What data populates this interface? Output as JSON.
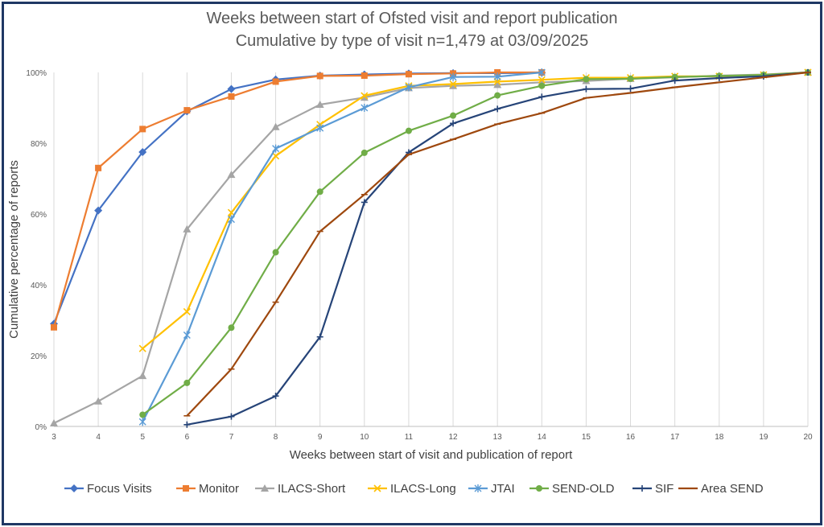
{
  "chart_data": {
    "type": "line",
    "title": "Weeks between start of Ofsted visit and report publication",
    "subtitle": "Cumulative by type of visit n=1,479 at 03/09/2025",
    "xlabel": "Weeks between start of visit and publication of report",
    "ylabel": "Cumulative percentage of reports",
    "xlim": [
      3,
      20
    ],
    "ylim": [
      0,
      100
    ],
    "x_ticks": [
      3,
      4,
      5,
      6,
      7,
      8,
      9,
      10,
      11,
      12,
      13,
      14,
      15,
      16,
      17,
      18,
      19,
      20
    ],
    "y_ticks": [
      "0%",
      "20%",
      "40%",
      "60%",
      "80%",
      "100%"
    ],
    "grid": "vertical",
    "legend": "bottom",
    "series": [
      {
        "name": "Focus Visits",
        "color": "#4472c4",
        "marker": "diamond",
        "points": [
          [
            3,
            29
          ],
          [
            4,
            61
          ],
          [
            5,
            77.5
          ],
          [
            6,
            89
          ],
          [
            7,
            95.3
          ],
          [
            8,
            98
          ],
          [
            9,
            99.1
          ],
          [
            10,
            99.4
          ],
          [
            11,
            99.7
          ],
          [
            12,
            99.8
          ],
          [
            13,
            99.8
          ],
          [
            14,
            99.9
          ]
        ]
      },
      {
        "name": "Monitor",
        "color": "#ed7d31",
        "marker": "square",
        "points": [
          [
            3,
            28
          ],
          [
            4,
            73
          ],
          [
            5,
            84
          ],
          [
            6,
            89.3
          ],
          [
            7,
            93.2
          ],
          [
            8,
            97.4
          ],
          [
            9,
            99
          ],
          [
            10,
            99.1
          ],
          [
            11,
            99.5
          ],
          [
            12,
            99.7
          ],
          [
            13,
            100
          ],
          [
            14,
            100
          ]
        ]
      },
      {
        "name": "ILACS-Short",
        "color": "#a5a5a5",
        "marker": "triangle",
        "points": [
          [
            3,
            0.9
          ],
          [
            4,
            7.1
          ],
          [
            5,
            14.3
          ],
          [
            6,
            55.7
          ],
          [
            7,
            71.1
          ],
          [
            8,
            84.6
          ],
          [
            9,
            90.9
          ],
          [
            10,
            92.9
          ],
          [
            11,
            95.6
          ],
          [
            12,
            96.2
          ],
          [
            13,
            96.5
          ],
          [
            14,
            97.2
          ],
          [
            15,
            97.6
          ],
          [
            16,
            98.2
          ],
          [
            17,
            98.6
          ],
          [
            18,
            99.1
          ],
          [
            19,
            99.4
          ],
          [
            20,
            100
          ]
        ]
      },
      {
        "name": "ILACS-Long",
        "color": "#ffc000",
        "marker": "x",
        "points": [
          [
            5,
            22
          ],
          [
            6,
            32.4
          ],
          [
            7,
            60.4
          ],
          [
            8,
            76.4
          ],
          [
            9,
            85.3
          ],
          [
            10,
            93.4
          ],
          [
            11,
            96.2
          ],
          [
            12,
            96.7
          ],
          [
            13,
            97.4
          ],
          [
            14,
            97.9
          ],
          [
            15,
            98.5
          ],
          [
            16,
            98.5
          ],
          [
            17,
            98.9
          ],
          [
            18,
            98.9
          ],
          [
            19,
            99.3
          ],
          [
            20,
            100
          ]
        ]
      },
      {
        "name": "JTAI",
        "color": "#5b9bd5",
        "marker": "star",
        "points": [
          [
            5,
            1.3
          ],
          [
            6,
            25.8
          ],
          [
            7,
            58.5
          ],
          [
            8,
            78.5
          ],
          [
            9,
            84.3
          ],
          [
            10,
            90
          ],
          [
            11,
            95.8
          ],
          [
            12,
            98.7
          ],
          [
            13,
            98.8
          ],
          [
            14,
            100
          ]
        ]
      },
      {
        "name": "SEND-OLD",
        "color": "#70ad47",
        "marker": "circle",
        "points": [
          [
            5,
            3.3
          ],
          [
            6,
            12.3
          ],
          [
            7,
            27.9
          ],
          [
            8,
            49.2
          ],
          [
            9,
            66.3
          ],
          [
            10,
            77.3
          ],
          [
            11,
            83.5
          ],
          [
            12,
            87.8
          ],
          [
            13,
            93.5
          ],
          [
            14,
            96.2
          ],
          [
            15,
            98.1
          ],
          [
            16,
            98.2
          ],
          [
            17,
            98.7
          ],
          [
            18,
            99
          ],
          [
            19,
            99.3
          ],
          [
            20,
            100
          ]
        ]
      },
      {
        "name": "SIF",
        "color": "#264478",
        "marker": "plus",
        "points": [
          [
            6,
            0.5
          ],
          [
            7,
            2.8
          ],
          [
            8,
            8.6
          ],
          [
            9,
            25.3
          ],
          [
            10,
            63.3
          ],
          [
            11,
            77.4
          ],
          [
            12,
            85.6
          ],
          [
            13,
            89.7
          ],
          [
            14,
            93.1
          ],
          [
            15,
            95.3
          ],
          [
            16,
            95.4
          ],
          [
            17,
            97.7
          ],
          [
            18,
            98.4
          ],
          [
            19,
            98.9
          ],
          [
            20,
            100
          ]
        ]
      },
      {
        "name": "Area SEND",
        "color": "#9e480e",
        "marker": "dash",
        "points": [
          [
            6,
            3
          ],
          [
            7,
            16.2
          ],
          [
            8,
            35.1
          ],
          [
            9,
            55.1
          ],
          [
            10,
            65.5
          ],
          [
            11,
            76.8
          ],
          [
            12,
            81.1
          ],
          [
            13,
            85.4
          ],
          [
            14,
            88.5
          ],
          [
            15,
            92.8
          ],
          [
            16,
            94.2
          ],
          [
            17,
            95.8
          ],
          [
            18,
            97.2
          ],
          [
            19,
            98.6
          ],
          [
            20,
            100
          ]
        ]
      }
    ]
  }
}
